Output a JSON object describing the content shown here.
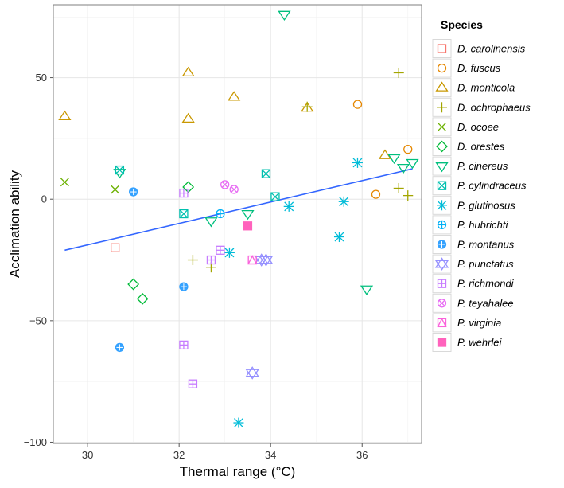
{
  "chart_data": {
    "type": "scatter",
    "title": "",
    "xlabel": "Thermal range (°C)",
    "ylabel": "Acclimation ability",
    "xlim": [
      29.25,
      37.3
    ],
    "ylim": [
      -100.5,
      80
    ],
    "xticks": [
      30,
      32,
      34,
      36
    ],
    "yticks": [
      -100,
      -50,
      0,
      50
    ],
    "grid": true,
    "legend": {
      "title": "Species",
      "placement": "right"
    },
    "trendline": {
      "type": "linear",
      "color": "#3366ff",
      "x": [
        29.5,
        37.1
      ],
      "y": [
        -21,
        12.5
      ]
    },
    "series": [
      {
        "name": "D. carolinensis",
        "color": "#f8766d",
        "shape": "square-open",
        "points": [
          [
            30.6,
            -20
          ]
        ]
      },
      {
        "name": "D. fuscus",
        "color": "#e58700",
        "shape": "circle-open",
        "points": [
          [
            35.9,
            39
          ],
          [
            36.3,
            2
          ],
          [
            37.0,
            20.5
          ]
        ]
      },
      {
        "name": "D. monticola",
        "color": "#c99800",
        "shape": "triangle-open",
        "points": [
          [
            29.5,
            34
          ],
          [
            32.2,
            52
          ],
          [
            32.2,
            33
          ],
          [
            33.2,
            42
          ],
          [
            34.8,
            37.5
          ],
          [
            36.5,
            18
          ]
        ]
      },
      {
        "name": "D. ochrophaeus",
        "color": "#a3a500",
        "shape": "plus",
        "points": [
          [
            34.8,
            38
          ],
          [
            36.8,
            52
          ],
          [
            32.3,
            -25
          ],
          [
            32.7,
            -28
          ],
          [
            36.8,
            4.5
          ],
          [
            37.0,
            1.5
          ]
        ]
      },
      {
        "name": "D. ocoee",
        "color": "#6bb100",
        "shape": "cross",
        "points": [
          [
            29.5,
            7
          ],
          [
            30.6,
            4
          ]
        ]
      },
      {
        "name": "D. orestes",
        "color": "#00ba38",
        "shape": "diamond-open",
        "points": [
          [
            32.2,
            5
          ],
          [
            31.0,
            -35
          ],
          [
            31.2,
            -41
          ]
        ]
      },
      {
        "name": "P. cinereus",
        "color": "#00bf7d",
        "shape": "triangle-down-open",
        "points": [
          [
            34.3,
            76
          ],
          [
            30.7,
            11
          ],
          [
            32.7,
            -9
          ],
          [
            33.5,
            -6
          ],
          [
            36.1,
            -37
          ],
          [
            36.7,
            17
          ],
          [
            36.9,
            13
          ],
          [
            37.1,
            15
          ]
        ]
      },
      {
        "name": "P. cylindraceus",
        "color": "#00c0af",
        "shape": "square-cross",
        "points": [
          [
            30.7,
            12
          ],
          [
            32.1,
            -6
          ],
          [
            33.9,
            10.5
          ],
          [
            34.1,
            1
          ]
        ]
      },
      {
        "name": "P. glutinosus",
        "color": "#00bcd8",
        "shape": "asterisk",
        "points": [
          [
            33.1,
            -22
          ],
          [
            34.4,
            -3
          ],
          [
            35.9,
            15
          ],
          [
            35.6,
            -1
          ],
          [
            35.5,
            -15.5
          ],
          [
            33.3,
            -92
          ]
        ]
      },
      {
        "name": "P. hubrichti",
        "color": "#00b0f6",
        "shape": "circle-plus",
        "points": [
          [
            32.9,
            -6
          ]
        ]
      },
      {
        "name": "P. montanus",
        "color": "#35a2ff",
        "shape": "circle-plus-filled",
        "points": [
          [
            31.0,
            3
          ],
          [
            32.1,
            -36
          ],
          [
            30.7,
            -61
          ]
        ]
      },
      {
        "name": "P. punctatus",
        "color": "#9590ff",
        "shape": "star-of-david",
        "points": [
          [
            33.8,
            -25
          ],
          [
            33.9,
            -25
          ],
          [
            33.6,
            -71.5
          ]
        ]
      },
      {
        "name": "P. richmondi",
        "color": "#c77cff",
        "shape": "square-plus",
        "points": [
          [
            32.1,
            2.5
          ],
          [
            32.9,
            -21
          ],
          [
            32.7,
            -25
          ],
          [
            32.1,
            -60
          ],
          [
            32.3,
            -76
          ]
        ]
      },
      {
        "name": "P. teyahalee",
        "color": "#e76bf3",
        "shape": "circle-cross",
        "points": [
          [
            33.0,
            6
          ],
          [
            33.2,
            4
          ]
        ]
      },
      {
        "name": "P. virginia",
        "color": "#fa62db",
        "shape": "square-triangle",
        "points": [
          [
            33.6,
            -25
          ]
        ]
      },
      {
        "name": "P. wehrlei",
        "color": "#ff62bc",
        "shape": "square-filled",
        "points": [
          [
            33.5,
            -11
          ]
        ]
      }
    ]
  }
}
